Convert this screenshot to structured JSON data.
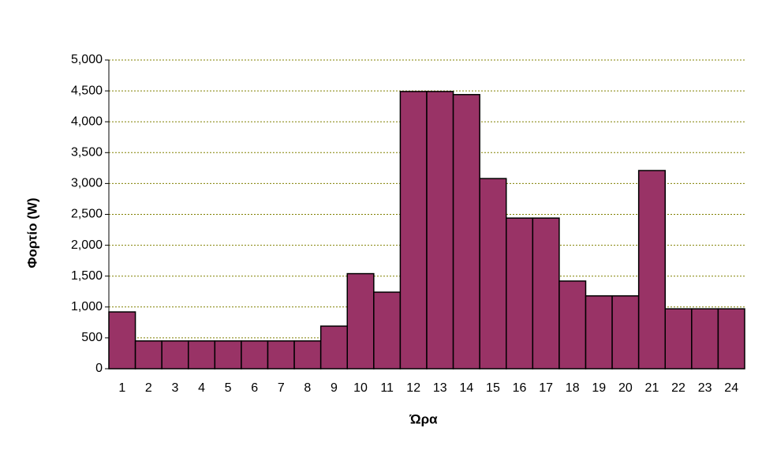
{
  "chart_data": {
    "type": "bar",
    "x_label": "Ώρα",
    "y_label": "Φορτίο (W)",
    "categories": [
      "1",
      "2",
      "3",
      "4",
      "5",
      "6",
      "7",
      "8",
      "9",
      "10",
      "11",
      "12",
      "13",
      "14",
      "15",
      "16",
      "17",
      "18",
      "19",
      "20",
      "21",
      "22",
      "23",
      "24"
    ],
    "values": [
      920,
      450,
      450,
      450,
      450,
      450,
      450,
      450,
      690,
      1540,
      1240,
      4490,
      4490,
      4440,
      3080,
      2440,
      2440,
      1420,
      1180,
      1180,
      3210,
      970,
      970,
      970
    ],
    "color": "#993366",
    "ylim": [
      0,
      5000
    ],
    "yticks": [
      0,
      500,
      {
        "value": 1000,
        "label": "1,000"
      },
      {
        "value": 1500,
        "label": "1,500"
      },
      {
        "value": 2000,
        "label": "2,000"
      },
      {
        "value": 2500,
        "label": "2,500"
      },
      {
        "value": 3000,
        "label": "3,000"
      },
      {
        "value": 3500,
        "label": "3,500"
      },
      {
        "value": 4000,
        "label": "4,000"
      },
      {
        "value": 4500,
        "label": "4,500"
      },
      {
        "value": 5000,
        "label": "5,000"
      }
    ],
    "grid": true
  }
}
